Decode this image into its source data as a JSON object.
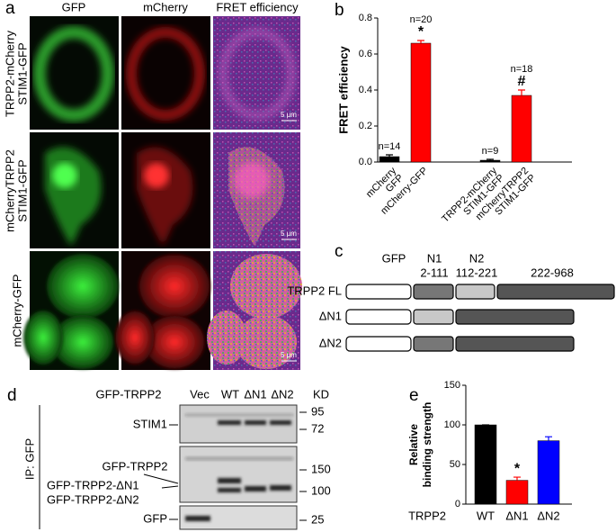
{
  "panel_labels": [
    "a",
    "b",
    "c",
    "d",
    "e"
  ],
  "microscopy": {
    "columns": [
      "GFP",
      "mCherry",
      "FRET efficiency"
    ],
    "rows": [
      [
        "TRPP2-mCherry",
        "STIM1-GFP"
      ],
      [
        "mCherryTRPP2",
        "STIM1-GFP"
      ],
      [
        "mCherry-GFP"
      ]
    ],
    "scale_bar": "5 μm"
  },
  "domain_diagram": {
    "header": {
      "gfp": "GFP",
      "n1": "N1",
      "n1_range": "2-111",
      "n2": "N2",
      "n2_range": "112-221",
      "rest_range": "222-968"
    },
    "constructs": [
      "TRPP2 FL",
      "ΔN1",
      "ΔN2"
    ]
  },
  "blot": {
    "bait": "GFP-TRPP2",
    "lanes": [
      "Vec",
      "WT",
      "ΔN1",
      "ΔN2"
    ],
    "unit": "KD",
    "markers": [
      "95",
      "72",
      "150",
      "100",
      "25"
    ],
    "bands": {
      "stim1": "STIM1",
      "trpp2": "GFP-TRPP2",
      "dn1": "GFP-TRPP2-ΔN1",
      "dn2": "GFP-TRPP2-ΔN2",
      "gfp": "GFP"
    },
    "ip": "IP: GFP"
  },
  "chart_data": [
    {
      "type": "bar",
      "ylabel": "FRET efficiency",
      "categories": [
        [
          "mCherry",
          "GFP"
        ],
        [
          "mCherry-GFP"
        ],
        [
          "TRPP2-mCherry",
          "STIM1-GFP"
        ],
        [
          "mCherryTRPP2",
          "STIM1-GFP"
        ]
      ],
      "values": [
        0.03,
        0.66,
        0.01,
        0.37
      ],
      "errors": [
        0.01,
        0.015,
        0.005,
        0.03
      ],
      "colors": [
        "#000000",
        "#ff0000",
        "#000000",
        "#ff0000"
      ],
      "n_labels": [
        "n=14",
        "n=20",
        "n=9",
        "n=18"
      ],
      "significance": [
        null,
        "*",
        null,
        "#"
      ],
      "ylim": [
        0,
        0.8
      ],
      "yticks": [
        {
          "value": 0,
          "label": "0.0"
        },
        0.2,
        0.4,
        0.6,
        0.8
      ]
    },
    {
      "type": "bar",
      "ylabel": [
        "Relative",
        "binding strength"
      ],
      "xlabel": "TRPP2",
      "categories": [
        [
          "WT"
        ],
        [
          "ΔN1"
        ],
        [
          "ΔN2"
        ]
      ],
      "values": [
        100,
        30,
        80
      ],
      "errors": [
        0,
        4,
        5
      ],
      "colors": [
        "#000000",
        "#ff0000",
        "#0000ff"
      ],
      "significance": [
        null,
        "*",
        null
      ],
      "ylim": [
        0,
        150
      ],
      "yticks": [
        0,
        50,
        100,
        150
      ]
    }
  ]
}
